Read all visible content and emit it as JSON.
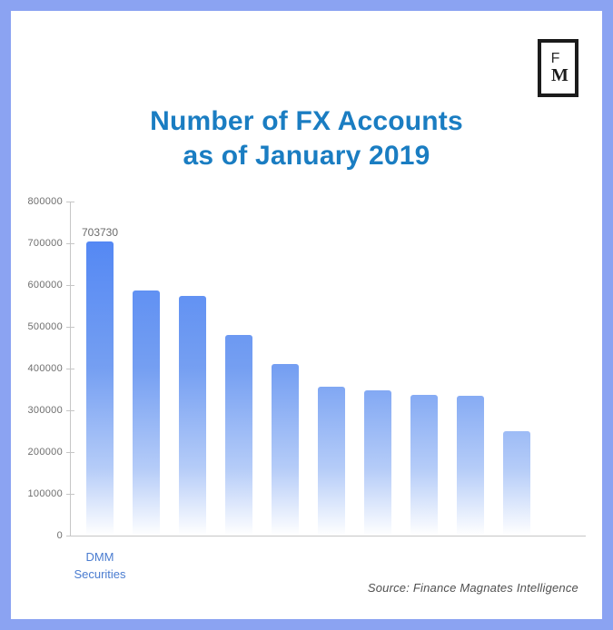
{
  "frame": {
    "border_color": "#8ba3f2"
  },
  "logo": {
    "top_letter": "F",
    "bottom_letter": "M"
  },
  "title": {
    "line1": "Number of FX Accounts",
    "line2": "as of January 2019",
    "color": "#1a7dc2"
  },
  "source_text": "Source: Finance Magnates Intelligence",
  "chart_data": {
    "type": "bar",
    "title": "Number of FX Accounts as of January 2019",
    "categories": [
      "DMM Securities",
      "",
      "",
      "",
      "",
      "",
      "",
      "",
      "",
      ""
    ],
    "values": [
      703730,
      588000,
      573000,
      480000,
      410000,
      357000,
      349000,
      337000,
      335000,
      250000
    ],
    "data_labels": [
      "703730",
      "",
      "",
      "",
      "",
      "",
      "",
      "",
      "",
      ""
    ],
    "xlabel": "",
    "ylabel": "",
    "ylim": [
      0,
      800000
    ],
    "yticks": [
      0,
      100000,
      200000,
      300000,
      400000,
      500000,
      600000,
      700000,
      800000
    ],
    "grid": false,
    "legend": false,
    "colors": {
      "bar_gradient": [
        "#4a81f4",
        "#759ff2",
        "#b5ccf8",
        "#ffffff"
      ],
      "axis": "#c6c6c6",
      "tick_label": "#6e6e6e",
      "value_label": "#6b6b6b",
      "category_label": "#4a7cd0"
    }
  }
}
